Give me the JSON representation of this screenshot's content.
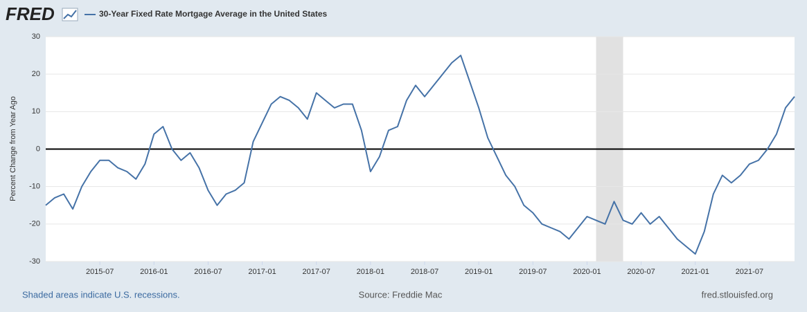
{
  "chart_data": {
    "type": "line",
    "logo": "FRED",
    "y_label": "Percent Change from Year Ago",
    "footer_left": "Shaded areas indicate U.S. recessions.",
    "footer_center": "Source: Freddie Mac",
    "footer_right": "fred.stlouisfed.org",
    "x": [
      "2015-01",
      "2015-02",
      "2015-03",
      "2015-04",
      "2015-05",
      "2015-06",
      "2015-07",
      "2015-08",
      "2015-09",
      "2015-10",
      "2015-11",
      "2015-12",
      "2016-01",
      "2016-02",
      "2016-03",
      "2016-04",
      "2016-05",
      "2016-06",
      "2016-07",
      "2016-08",
      "2016-09",
      "2016-10",
      "2016-11",
      "2016-12",
      "2017-01",
      "2017-02",
      "2017-03",
      "2017-04",
      "2017-05",
      "2017-06",
      "2017-07",
      "2017-08",
      "2017-09",
      "2017-10",
      "2017-11",
      "2017-12",
      "2018-01",
      "2018-02",
      "2018-03",
      "2018-04",
      "2018-05",
      "2018-06",
      "2018-07",
      "2018-08",
      "2018-09",
      "2018-10",
      "2018-11",
      "2018-12",
      "2019-01",
      "2019-02",
      "2019-03",
      "2019-04",
      "2019-05",
      "2019-06",
      "2019-07",
      "2019-08",
      "2019-09",
      "2019-10",
      "2019-11",
      "2019-12",
      "2020-01",
      "2020-02",
      "2020-03",
      "2020-04",
      "2020-05",
      "2020-06",
      "2020-07",
      "2020-08",
      "2020-09",
      "2020-10",
      "2020-11",
      "2020-12",
      "2021-01",
      "2021-02",
      "2021-03",
      "2021-04",
      "2021-05",
      "2021-06",
      "2021-07",
      "2021-08",
      "2021-09",
      "2021-10",
      "2021-11",
      "2021-12"
    ],
    "series": [
      {
        "name": "30-Year Fixed Rate Mortgage Average in the United States",
        "color": "#4572a7",
        "values": [
          -15,
          -13,
          -12,
          -16,
          -10,
          -6,
          -3,
          -3,
          -5,
          -6,
          -8,
          -4,
          4,
          6,
          0,
          -3,
          -1,
          -5,
          -11,
          -15,
          -12,
          -11,
          -9,
          2,
          7,
          12,
          14,
          13,
          11,
          8,
          15,
          13,
          11,
          12,
          12,
          5,
          -6,
          -2,
          5,
          6,
          13,
          17,
          14,
          17,
          20,
          23,
          25,
          18,
          11,
          3,
          -2,
          -7,
          -10,
          -15,
          -17,
          -20,
          -21,
          -22,
          -24,
          -21,
          -18,
          -19,
          -20,
          -14,
          -19,
          -20,
          -17,
          -20,
          -18,
          -21,
          -24,
          -26,
          -28,
          -22,
          -12,
          -7,
          -9,
          -7,
          -4,
          -3,
          0,
          4,
          11,
          14
        ]
      }
    ],
    "xlim": [
      "2015-01",
      "2021-12"
    ],
    "xticks": [
      "2015-07",
      "2016-01",
      "2016-07",
      "2017-01",
      "2017-07",
      "2018-01",
      "2018-07",
      "2019-01",
      "2019-07",
      "2020-01",
      "2020-07",
      "2021-01",
      "2021-07"
    ],
    "ylim": [
      -30,
      30
    ],
    "yticks": [
      -30,
      -20,
      -10,
      0,
      10,
      20,
      30
    ],
    "grid": true,
    "reference_line": 0,
    "recessions": [
      {
        "start": "2020-02",
        "end": "2020-04"
      }
    ]
  }
}
